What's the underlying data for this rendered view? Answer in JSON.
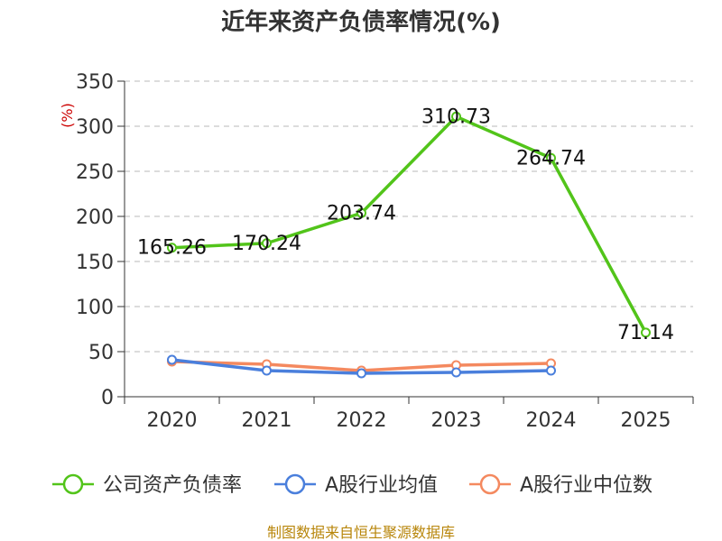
{
  "chart_data": {
    "type": "line",
    "title": "近年来资产负债率情况(%)",
    "ylabel": "(%)",
    "categories": [
      "2020",
      "2021",
      "2022",
      "2023",
      "2024",
      "2025"
    ],
    "ylim": [
      0,
      350
    ],
    "yticks": [
      0,
      50,
      100,
      150,
      200,
      250,
      300,
      350
    ],
    "grid": true,
    "legend_position": "bottom",
    "series": [
      {
        "name": "公司资产负债率",
        "color": "#52c41a",
        "values": [
          165.26,
          170.24,
          203.74,
          310.73,
          264.74,
          71.14
        ],
        "labels": [
          "165.26",
          "170.24",
          "203.74",
          "310.73",
          "264.74",
          "71.14"
        ]
      },
      {
        "name": "A股行业均值",
        "color": "#4a7fdc",
        "values": [
          41,
          29,
          26,
          27,
          29,
          null
        ]
      },
      {
        "name": "A股行业中位数",
        "color": "#f4895f",
        "values": [
          39,
          36,
          29,
          35,
          37,
          null
        ]
      }
    ],
    "source": "制图数据来自恒生聚源数据库"
  }
}
